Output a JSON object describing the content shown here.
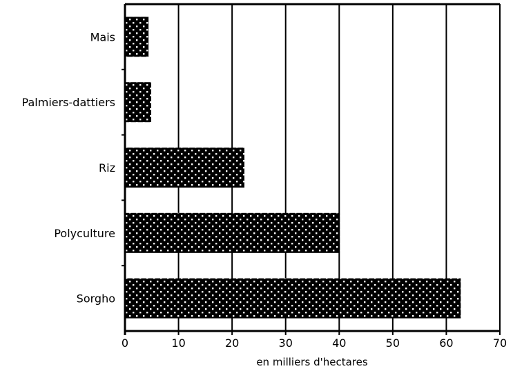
{
  "chart_data": {
    "type": "bar",
    "orientation": "horizontal",
    "title": "",
    "categories": [
      "Mais",
      "Palmiers-dattiers",
      "Riz",
      "Polyculture",
      "Sorgho"
    ],
    "values": [
      4.4,
      4.9,
      22.3,
      40.1,
      62.7
    ],
    "xlabel": "en milliers d'hectares",
    "ylabel": "",
    "xlim": [
      0,
      70
    ],
    "xticks": [
      0,
      10,
      20,
      30,
      40,
      50,
      60,
      70
    ],
    "grid": "vertical",
    "legend": "none",
    "bar_color": "#000000"
  }
}
